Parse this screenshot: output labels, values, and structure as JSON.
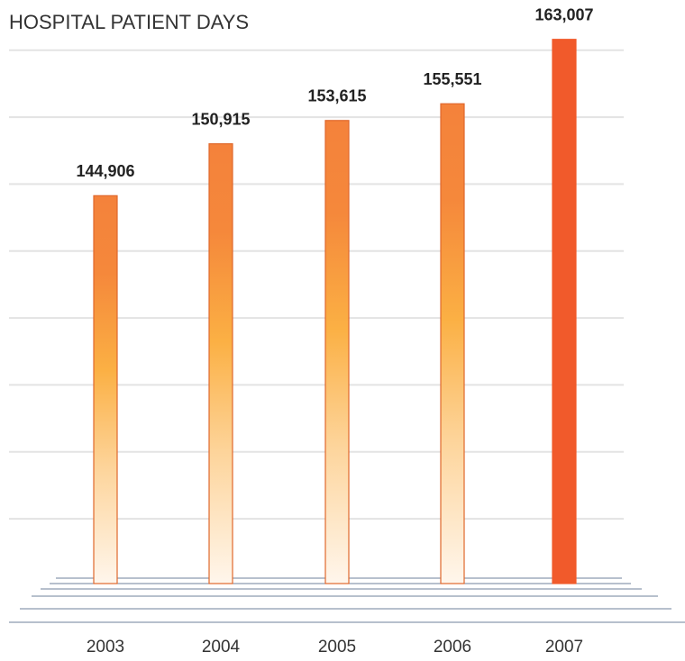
{
  "chart_data": {
    "type": "bar",
    "title": "HOSPITAL PATIENT DAYS",
    "categories": [
      "2003",
      "2004",
      "2005",
      "2006",
      "2007"
    ],
    "values": [
      144906,
      150915,
      153615,
      155551,
      163007
    ],
    "value_labels": [
      "144,906",
      "150,915",
      "153,615",
      "155,551",
      "163,007"
    ],
    "colors": [
      "gradient",
      "gradient",
      "gradient",
      "gradient",
      "#f15a2b"
    ],
    "ylim": [
      100000,
      166000
    ],
    "yticks": [
      107500,
      115250,
      123000,
      130750,
      138500,
      146250,
      154000,
      161750
    ],
    "grid": true
  }
}
